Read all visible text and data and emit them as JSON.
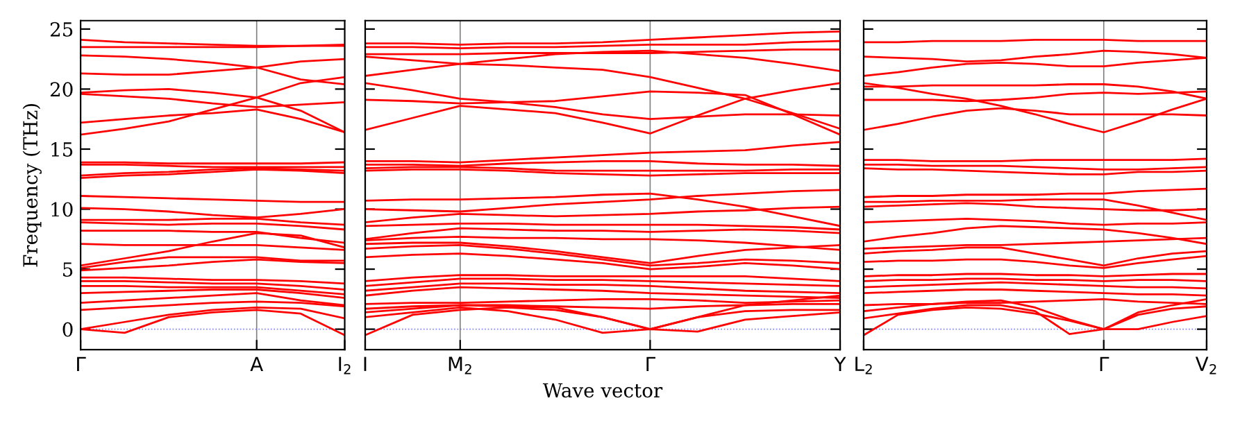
{
  "chart_data": [
    {
      "type": "line",
      "ylabel": "Frequency (THz)",
      "ylim": [
        -1.7,
        25.7
      ],
      "yticks": [
        0,
        5,
        10,
        15,
        20,
        25
      ],
      "categories": [
        "Γ",
        null,
        null,
        null,
        "A",
        null,
        "I$_{2}$"
      ],
      "tick_labels": "xy",
      "marker": "none",
      "line_style": "solid",
      "ref_lines": [
        {
          "axis": "y",
          "value": 0,
          "color": "#8080ff",
          "line_style": "dotted"
        },
        {
          "axis": "x",
          "value": "A",
          "color": "#808080",
          "line_style": "solid"
        }
      ],
      "series": [
        {
          "color": "#ff0000",
          "values": [
            24.1,
            23.9,
            23.8,
            23.7,
            23.6,
            23.6,
            23.6
          ]
        },
        {
          "color": "#ff0000",
          "values": [
            23.5,
            23.5,
            23.5,
            23.5,
            23.5,
            23.6,
            23.7
          ]
        },
        {
          "color": "#ff0000",
          "values": [
            22.8,
            22.7,
            22.5,
            22.2,
            21.8,
            22.3,
            22.5
          ]
        },
        {
          "color": "#ff0000",
          "values": [
            21.3,
            21.2,
            21.2,
            21.5,
            21.8,
            20.8,
            20.4
          ]
        },
        {
          "color": "#ff0000",
          "values": [
            19.7,
            19.9,
            20.0,
            19.7,
            19.3,
            18.2,
            16.4
          ]
        },
        {
          "color": "#ff0000",
          "values": [
            19.6,
            19.4,
            19.2,
            18.8,
            18.5,
            18.7,
            18.9
          ]
        },
        {
          "color": "#ff0000",
          "values": [
            17.2,
            17.5,
            17.8,
            18.0,
            18.3,
            17.5,
            16.4
          ]
        },
        {
          "color": "#ff0000",
          "values": [
            16.2,
            16.7,
            17.3,
            18.3,
            19.3,
            20.5,
            21.0
          ]
        },
        {
          "color": "#ff0000",
          "values": [
            13.9,
            13.9,
            13.8,
            13.8,
            13.8,
            13.8,
            13.9
          ]
        },
        {
          "color": "#ff0000",
          "values": [
            13.7,
            13.7,
            13.6,
            13.5,
            13.5,
            13.5,
            13.5
          ]
        },
        {
          "color": "#ff0000",
          "values": [
            12.8,
            13.0,
            13.1,
            13.3,
            13.4,
            13.3,
            13.2
          ]
        },
        {
          "color": "#ff0000",
          "values": [
            12.6,
            12.8,
            12.9,
            13.1,
            13.3,
            13.2,
            13.0
          ]
        },
        {
          "color": "#ff0000",
          "values": [
            11.1,
            11.0,
            10.9,
            10.8,
            10.7,
            10.6,
            10.6
          ]
        },
        {
          "color": "#ff0000",
          "values": [
            10.1,
            10.0,
            9.8,
            9.5,
            9.3,
            9.6,
            10.0
          ]
        },
        {
          "color": "#ff0000",
          "values": [
            9.1,
            9.1,
            9.1,
            9.2,
            9.2,
            8.9,
            8.7
          ]
        },
        {
          "color": "#ff0000",
          "values": [
            8.9,
            8.8,
            8.7,
            8.8,
            8.8,
            8.6,
            8.3
          ]
        },
        {
          "color": "#ff0000",
          "values": [
            8.2,
            8.2,
            8.2,
            8.1,
            8.1,
            7.6,
            7.2
          ]
        },
        {
          "color": "#ff0000",
          "values": [
            7.1,
            7.0,
            7.0,
            7.0,
            7.0,
            6.8,
            6.6
          ]
        },
        {
          "color": "#ff0000",
          "values": [
            5.3,
            5.9,
            6.5,
            7.3,
            8.0,
            7.8,
            6.8
          ]
        },
        {
          "color": "#ff0000",
          "values": [
            5.1,
            5.6,
            6.0,
            6.0,
            6.0,
            5.7,
            5.7
          ]
        },
        {
          "color": "#ff0000",
          "values": [
            4.9,
            5.1,
            5.3,
            5.6,
            5.8,
            5.6,
            5.5
          ]
        },
        {
          "color": "#ff0000",
          "values": [
            4.3,
            4.3,
            4.2,
            4.1,
            4.1,
            4.0,
            3.8
          ]
        },
        {
          "color": "#ff0000",
          "values": [
            4.0,
            4.0,
            3.9,
            3.8,
            3.8,
            3.6,
            3.3
          ]
        },
        {
          "color": "#ff0000",
          "values": [
            3.6,
            3.6,
            3.5,
            3.5,
            3.5,
            3.2,
            2.9
          ]
        },
        {
          "color": "#ff0000",
          "values": [
            3.0,
            3.1,
            3.2,
            3.3,
            3.3,
            3.0,
            2.6
          ]
        },
        {
          "color": "#ff0000",
          "values": [
            2.2,
            2.4,
            2.6,
            2.8,
            3.0,
            2.4,
            2.0
          ]
        },
        {
          "color": "#ff0000",
          "values": [
            1.6,
            1.8,
            2.0,
            2.2,
            2.3,
            2.2,
            1.9
          ]
        },
        {
          "color": "#ff0000",
          "values": [
            0,
            0.6,
            1.2,
            1.6,
            1.8,
            1.7,
            0.9
          ]
        },
        {
          "color": "#ff0000",
          "values": [
            0,
            -0.3,
            1.0,
            1.4,
            1.6,
            1.3,
            -0.5
          ]
        }
      ]
    },
    {
      "type": "line",
      "xlabel": "Wave vector",
      "ylim": [
        -1.7,
        25.7
      ],
      "yticks": [
        {
          "value": 0,
          "label": null
        },
        {
          "value": 5,
          "label": null
        },
        {
          "value": 10,
          "label": null
        },
        {
          "value": 15,
          "label": null
        },
        {
          "value": 20,
          "label": null
        },
        {
          "value": 25,
          "label": null
        }
      ],
      "categories": [
        "I",
        null,
        "M$_{2}$",
        null,
        null,
        null,
        "Γ",
        null,
        null,
        null,
        "Y"
      ],
      "tick_labels": "x",
      "marker": "none",
      "line_style": "solid",
      "ref_lines": [
        {
          "axis": "y",
          "value": 0,
          "color": "#8080ff",
          "line_style": "dotted"
        },
        {
          "axis": "x",
          "value": "M$_{2}$",
          "color": "#808080",
          "line_style": "solid"
        },
        {
          "axis": "x",
          "value": "Γ",
          "color": "#808080",
          "line_style": "solid"
        }
      ],
      "series": [
        {
          "color": "#ff0000",
          "values": [
            23.8,
            23.8,
            23.7,
            23.8,
            23.8,
            23.9,
            24.1,
            24.3,
            24.5,
            24.7,
            24.8
          ]
        },
        {
          "color": "#ff0000",
          "values": [
            21.1,
            21.6,
            22.1,
            22.5,
            22.9,
            23.1,
            23.2,
            22.9,
            22.6,
            22.1,
            21.5
          ]
        },
        {
          "color": "#ff0000",
          "values": [
            23.5,
            23.5,
            23.4,
            23.5,
            23.5,
            23.6,
            23.7,
            23.7,
            23.7,
            23.9,
            24.0
          ]
        },
        {
          "color": "#ff0000",
          "values": [
            22.7,
            22.4,
            22.1,
            22.0,
            21.8,
            21.6,
            21.0,
            20.1,
            19.2,
            18.0,
            16.7
          ]
        },
        {
          "color": "#ff0000",
          "values": [
            19.1,
            19.0,
            18.8,
            18.9,
            19.0,
            19.4,
            19.8,
            19.7,
            19.5,
            17.9,
            16.2
          ]
        },
        {
          "color": "#ff0000",
          "values": [
            20.5,
            19.9,
            19.2,
            18.9,
            18.5,
            17.9,
            17.5,
            17.7,
            17.9,
            17.9,
            17.8
          ]
        },
        {
          "color": "#ff0000",
          "values": [
            16.6,
            17.6,
            18.6,
            18.3,
            18.0,
            17.2,
            16.3,
            17.8,
            19.2,
            19.9,
            20.5
          ]
        },
        {
          "color": "#ff0000",
          "values": [
            22.9,
            22.9,
            22.9,
            23.0,
            23.0,
            23.0,
            23.0,
            23.1,
            23.2,
            23.3,
            23.3
          ]
        },
        {
          "color": "#ff0000",
          "values": [
            14.0,
            14.0,
            13.9,
            14.1,
            14.3,
            14.5,
            14.7,
            14.8,
            14.9,
            15.3,
            15.6
          ]
        },
        {
          "color": "#ff0000",
          "values": [
            13.7,
            13.7,
            13.6,
            13.8,
            13.9,
            14.0,
            14.0,
            13.8,
            13.7,
            13.7,
            13.6
          ]
        },
        {
          "color": "#ff0000",
          "values": [
            13.4,
            13.5,
            13.5,
            13.4,
            13.2,
            13.2,
            13.2,
            13.2,
            13.2,
            13.3,
            13.3
          ]
        },
        {
          "color": "#ff0000",
          "values": [
            13.2,
            13.3,
            13.3,
            13.2,
            13.0,
            12.9,
            12.8,
            12.9,
            13.0,
            13.0,
            13.0
          ]
        },
        {
          "color": "#ff0000",
          "values": [
            10.7,
            10.8,
            10.8,
            10.9,
            11.0,
            11.2,
            11.3,
            10.8,
            10.2,
            9.4,
            8.6
          ]
        },
        {
          "color": "#ff0000",
          "values": [
            10.0,
            9.9,
            9.8,
            10.1,
            10.4,
            10.6,
            10.8,
            11.1,
            11.3,
            11.5,
            11.6
          ]
        },
        {
          "color": "#ff0000",
          "values": [
            8.9,
            9.3,
            9.6,
            9.5,
            9.4,
            9.5,
            9.6,
            9.8,
            9.9,
            10.1,
            10.2
          ]
        },
        {
          "color": "#ff0000",
          "values": [
            8.6,
            8.7,
            8.8,
            8.8,
            8.7,
            8.7,
            8.7,
            8.7,
            8.6,
            8.5,
            8.3
          ]
        },
        {
          "color": "#ff0000",
          "values": [
            7.5,
            8.0,
            8.4,
            8.3,
            8.2,
            8.2,
            8.1,
            8.2,
            8.3,
            8.2,
            8.0
          ]
        },
        {
          "color": "#ff0000",
          "values": [
            7.1,
            7.2,
            7.2,
            6.9,
            6.5,
            6.0,
            5.5,
            6.1,
            6.6,
            6.8,
            7.0
          ]
        },
        {
          "color": "#ff0000",
          "values": [
            6.7,
            6.9,
            7.0,
            6.7,
            6.3,
            5.8,
            5.3,
            5.5,
            5.8,
            5.7,
            5.5
          ]
        },
        {
          "color": "#ff0000",
          "values": [
            6.0,
            6.2,
            6.3,
            6.1,
            5.8,
            5.5,
            5.0,
            5.2,
            5.5,
            5.3,
            5.0
          ]
        },
        {
          "color": "#ff0000",
          "values": [
            7.4,
            7.6,
            7.7,
            7.6,
            7.6,
            7.5,
            7.5,
            7.4,
            7.2,
            6.9,
            6.6
          ]
        },
        {
          "color": "#ff0000",
          "values": [
            4.0,
            4.3,
            4.5,
            4.5,
            4.4,
            4.4,
            4.4,
            4.4,
            4.4,
            4.2,
            4.0
          ]
        },
        {
          "color": "#ff0000",
          "values": [
            3.6,
            3.9,
            4.2,
            4.2,
            4.1,
            4.1,
            4.0,
            3.9,
            3.8,
            3.7,
            3.6
          ]
        },
        {
          "color": "#ff0000",
          "values": [
            3.2,
            3.5,
            3.8,
            3.8,
            3.7,
            3.7,
            3.6,
            3.4,
            3.2,
            3.1,
            3.0
          ]
        },
        {
          "color": "#ff0000",
          "values": [
            2.8,
            3.2,
            3.5,
            3.4,
            3.3,
            3.2,
            3.0,
            2.9,
            2.8,
            2.7,
            2.6
          ]
        },
        {
          "color": "#ff0000",
          "values": [
            2.1,
            2.2,
            2.2,
            2.3,
            2.4,
            2.5,
            2.5,
            2.4,
            2.2,
            2.3,
            2.4
          ]
        },
        {
          "color": "#ff0000",
          "values": [
            1.7,
            1.9,
            2.0,
            2.0,
            1.9,
            1.8,
            1.7,
            1.9,
            2.0,
            2.1,
            2.1
          ]
        },
        {
          "color": "#ff0000",
          "values": [
            -0.5,
            1.2,
            1.6,
            1.8,
            1.6,
            1.0,
            0,
            1.0,
            1.5,
            1.6,
            1.6
          ]
        },
        {
          "color": "#ff0000",
          "values": [
            1.0,
            1.4,
            1.8,
            1.5,
            0.8,
            -0.3,
            0,
            -0.2,
            0.8,
            1.1,
            1.4
          ]
        },
        {
          "color": "#ff0000",
          "values": [
            1.4,
            1.7,
            2.0,
            1.9,
            1.8,
            1.0,
            0,
            1.0,
            2.0,
            2.4,
            2.8
          ]
        }
      ]
    },
    {
      "type": "line",
      "ylim": [
        -1.7,
        25.7
      ],
      "yticks": [
        {
          "value": 0,
          "label": null
        },
        {
          "value": 5,
          "label": null
        },
        {
          "value": 10,
          "label": null
        },
        {
          "value": 15,
          "label": null
        },
        {
          "value": 20,
          "label": null
        },
        {
          "value": 25,
          "label": null
        }
      ],
      "categories": [
        "L$_{2}$",
        null,
        null,
        null,
        null,
        null,
        null,
        "Γ",
        null,
        null,
        "V$_{2}$"
      ],
      "tick_labels": "x",
      "marker": "none",
      "line_style": "solid",
      "ref_lines": [
        {
          "axis": "y",
          "value": 0,
          "color": "#8080ff",
          "line_style": "dotted"
        },
        {
          "axis": "x",
          "value": "Γ",
          "color": "#808080",
          "line_style": "solid"
        }
      ],
      "series": [
        {
          "color": "#ff0000",
          "values": [
            23.9,
            23.9,
            24.0,
            24.0,
            24.0,
            24.1,
            24.1,
            24.1,
            24.0,
            24.0,
            24.0
          ]
        },
        {
          "color": "#ff0000",
          "values": [
            22.7,
            22.6,
            22.5,
            22.3,
            22.4,
            22.7,
            22.9,
            23.2,
            23.1,
            22.9,
            22.6
          ]
        },
        {
          "color": "#ff0000",
          "values": [
            21.1,
            21.4,
            21.8,
            22.1,
            22.2,
            22.1,
            21.9,
            21.9,
            22.2,
            22.4,
            22.6
          ]
        },
        {
          "color": "#ff0000",
          "values": [
            20.5,
            20.1,
            19.6,
            19.2,
            18.6,
            17.9,
            17.1,
            16.4,
            17.3,
            18.3,
            19.2
          ]
        },
        {
          "color": "#ff0000",
          "values": [
            19.1,
            19.1,
            19.1,
            19.0,
            19.1,
            19.3,
            19.6,
            19.7,
            19.6,
            19.7,
            19.8
          ]
        },
        {
          "color": "#ff0000",
          "values": [
            16.6,
            17.1,
            17.7,
            18.2,
            18.4,
            18.2,
            17.9,
            17.9,
            17.9,
            17.9,
            17.8
          ]
        },
        {
          "color": "#ff0000",
          "values": [
            20.2,
            20.2,
            20.3,
            20.3,
            20.3,
            20.3,
            20.4,
            20.4,
            20.2,
            19.8,
            19.2
          ]
        },
        {
          "color": "#ff0000",
          "values": [
            14.1,
            14.1,
            14.0,
            14.0,
            14.0,
            14.1,
            14.1,
            14.1,
            14.1,
            14.1,
            14.2
          ]
        },
        {
          "color": "#ff0000",
          "values": [
            13.7,
            13.7,
            13.6,
            13.6,
            13.6,
            13.5,
            13.4,
            13.3,
            13.3,
            13.4,
            13.5
          ]
        },
        {
          "color": "#ff0000",
          "values": [
            13.4,
            13.3,
            13.3,
            13.2,
            13.1,
            13.0,
            12.9,
            12.9,
            13.1,
            13.1,
            13.2
          ]
        },
        {
          "color": "#ff0000",
          "values": [
            10.6,
            10.6,
            10.7,
            10.7,
            10.7,
            10.8,
            10.8,
            10.8,
            10.3,
            9.7,
            9.1
          ]
        },
        {
          "color": "#ff0000",
          "values": [
            10.2,
            10.3,
            10.4,
            10.5,
            10.4,
            10.2,
            10.1,
            10.0,
            9.9,
            9.9,
            10.0
          ]
        },
        {
          "color": "#ff0000",
          "values": [
            8.9,
            9.0,
            9.1,
            9.2,
            9.1,
            9.0,
            8.8,
            8.7,
            8.8,
            8.8,
            8.9
          ]
        },
        {
          "color": "#ff0000",
          "values": [
            7.3,
            7.7,
            8.0,
            8.4,
            8.6,
            8.5,
            8.4,
            8.3,
            8.0,
            7.6,
            7.1
          ]
        },
        {
          "color": "#ff0000",
          "values": [
            6.7,
            6.8,
            6.9,
            7.0,
            7.0,
            7.1,
            7.2,
            7.3,
            7.4,
            7.5,
            7.6
          ]
        },
        {
          "color": "#ff0000",
          "values": [
            6.3,
            6.5,
            6.6,
            6.8,
            6.8,
            6.3,
            5.8,
            5.3,
            5.9,
            6.3,
            6.5
          ]
        },
        {
          "color": "#ff0000",
          "values": [
            5.6,
            5.7,
            5.7,
            5.8,
            5.8,
            5.6,
            5.3,
            5.1,
            5.5,
            5.8,
            6.1
          ]
        },
        {
          "color": "#ff0000",
          "values": [
            4.4,
            4.5,
            4.5,
            4.6,
            4.6,
            4.5,
            4.5,
            4.4,
            4.5,
            4.6,
            4.6
          ]
        },
        {
          "color": "#ff0000",
          "values": [
            4.0,
            4.1,
            4.1,
            4.2,
            4.2,
            4.1,
            4.1,
            4.0,
            4.1,
            4.1,
            4.0
          ]
        },
        {
          "color": "#ff0000",
          "values": [
            3.5,
            3.6,
            3.7,
            3.8,
            3.9,
            3.8,
            3.7,
            3.6,
            3.5,
            3.5,
            3.4
          ]
        },
        {
          "color": "#ff0000",
          "values": [
            3.0,
            3.1,
            3.2,
            3.3,
            3.3,
            3.2,
            3.1,
            3.0,
            2.9,
            2.9,
            2.8
          ]
        },
        {
          "color": "#ff0000",
          "values": [
            2.0,
            2.1,
            2.1,
            2.2,
            2.2,
            2.3,
            2.4,
            2.5,
            2.3,
            2.2,
            2.1
          ]
        },
        {
          "color": "#ff0000",
          "values": [
            11.0,
            11.1,
            11.1,
            11.2,
            11.2,
            11.2,
            11.3,
            11.3,
            11.5,
            11.6,
            11.7
          ]
        },
        {
          "color": "#ff0000",
          "values": [
            -0.5,
            1.2,
            1.6,
            1.8,
            1.7,
            1.3,
            0.7,
            0,
            1.2,
            1.7,
            1.9
          ]
        },
        {
          "color": "#ff0000",
          "values": [
            0.9,
            1.3,
            1.7,
            2.0,
            2.0,
            1.5,
            -0.4,
            0,
            0,
            0.6,
            1.1
          ]
        },
        {
          "color": "#ff0000",
          "values": [
            1.5,
            1.8,
            2.1,
            2.3,
            2.4,
            1.8,
            0.8,
            0,
            1.4,
            2.0,
            2.5
          ]
        }
      ]
    }
  ]
}
